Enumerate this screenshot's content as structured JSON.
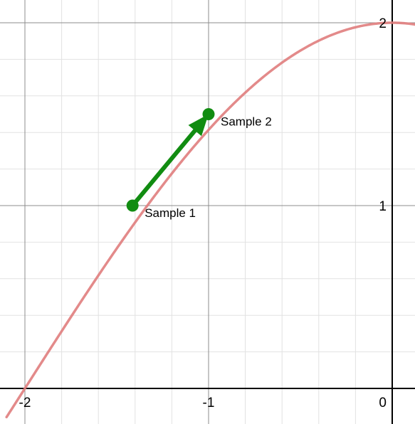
{
  "chart_data": {
    "type": "line",
    "xlim": [
      -2.1,
      0.17
    ],
    "ylim": [
      -0.2,
      2.02
    ],
    "grid": true,
    "x_ticks": [
      {
        "value": -2,
        "label": "-2"
      },
      {
        "value": -1,
        "label": "-1"
      },
      {
        "value": 0,
        "label": "0"
      }
    ],
    "y_ticks": [
      {
        "value": 1,
        "label": "1"
      },
      {
        "value": 2,
        "label": "2"
      }
    ],
    "series": [
      {
        "function": "2*cos(pi*x/4)",
        "color": "#e07d7d",
        "x_range": [
          -2.1,
          0.17
        ]
      }
    ],
    "points": [
      {
        "label": "Sample 1",
        "x": -1.414,
        "y": 1.0,
        "color": "#118c11"
      },
      {
        "label": "Sample 2",
        "x": -1.0,
        "y": 1.5,
        "color": "#118c11"
      }
    ],
    "arrow": {
      "from_point": 0,
      "to_point": 1,
      "color": "#118c11"
    }
  }
}
